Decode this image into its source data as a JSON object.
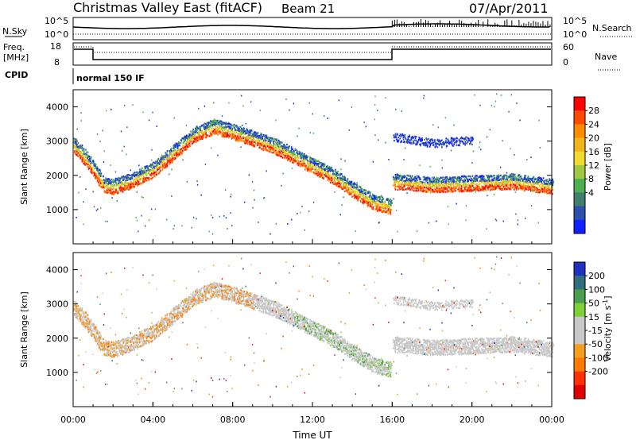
{
  "header": {
    "site": "Christmas Valley East (fitACF)",
    "beam": "Beam 21",
    "date": "07/Apr/2011"
  },
  "strip_panels": {
    "noise": {
      "left_label": "N.Sky",
      "right_label": "N.Search",
      "left_ticks": [
        "10^5",
        "10^0"
      ],
      "right_ticks": [
        "10^5",
        "10^0"
      ]
    },
    "freq": {
      "left_label_1": "Freq.",
      "left_label_2": "[MHz]",
      "left_ticks": [
        "18",
        "8"
      ],
      "right_label": "Nave",
      "right_ticks": [
        "60",
        "0"
      ]
    },
    "cpid": {
      "label": "CPID",
      "mode": "normal 150 IF"
    }
  },
  "colorbars": {
    "power": {
      "label": "Power [dB]",
      "ticks": [
        "28",
        "24",
        "20",
        "16",
        "12",
        "8",
        "4"
      ],
      "colors": [
        "#ff0000",
        "#ff4a00",
        "#ff8c00",
        "#f2b51e",
        "#f2dc32",
        "#a0c940",
        "#4caf50",
        "#3f7f6f",
        "#2e4fb0",
        "#1020ff"
      ]
    },
    "velocity": {
      "label": "Velocity [m s",
      "ticks": [
        "200",
        "100",
        "50",
        "15",
        "-15",
        "-50",
        "-100",
        "-200"
      ],
      "colors": [
        "#2030c0",
        "#2f6f80",
        "#4a9e50",
        "#7fd13a",
        "#c8c8c8",
        "#c8c8c8",
        "#f2a020",
        "#ff7a00",
        "#ff3000",
        "#e00000"
      ]
    }
  },
  "chart_data": [
    {
      "type": "heatmap",
      "name": "power",
      "ylabel": "Slant Range [km]",
      "ylim": [
        0,
        4500
      ],
      "yticks": [
        "4000",
        "3000",
        "2000",
        "1000"
      ],
      "xlim_hours": [
        0,
        24
      ],
      "traces": [
        {
          "t": [
            0.0,
            0.5,
            1.0,
            1.5,
            2.0,
            3.0,
            4.0,
            5.0,
            6.0,
            7.0,
            8.0,
            9.0,
            10.0,
            11.0,
            12.0,
            13.0,
            14.0,
            15.0,
            15.9
          ],
          "r": [
            2800,
            2500,
            2100,
            1650,
            1600,
            1800,
            2100,
            2600,
            3100,
            3350,
            3200,
            3000,
            2800,
            2500,
            2200,
            1900,
            1500,
            1150,
            1000
          ]
        },
        {
          "t": [
            16.0,
            18.0,
            20.0,
            22.0,
            24.0
          ],
          "r": [
            1750,
            1650,
            1700,
            1750,
            1600
          ]
        },
        {
          "t": [
            16.0,
            18.0,
            20.0
          ],
          "r": [
            3100,
            2900,
            3000
          ]
        }
      ]
    },
    {
      "type": "heatmap",
      "name": "velocity",
      "ylabel": "Slant Range [km]",
      "ylim": [
        0,
        4500
      ],
      "yticks": [
        "4000",
        "3000",
        "2000",
        "1000"
      ],
      "xlim_hours": [
        0,
        24
      ],
      "xticks": [
        "00:00",
        "04:00",
        "08:00",
        "12:00",
        "16:00",
        "20:00",
        "00:00"
      ],
      "xlabel": "Time UT"
    }
  ]
}
